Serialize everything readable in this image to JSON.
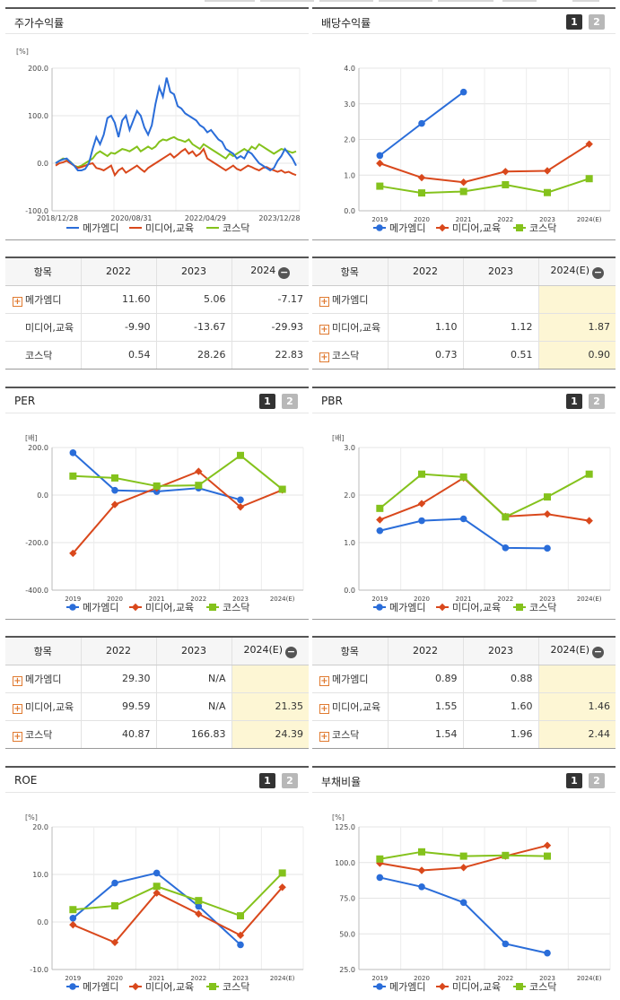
{
  "colors": {
    "mega": "#2a6dd9",
    "media": "#d9481c",
    "kosdaq": "#84c21c"
  },
  "tab1": "1",
  "tab2": "2",
  "panels": {
    "stock": {
      "title": "주가수익률"
    },
    "div": {
      "title": "배당수익률"
    },
    "per": {
      "title": "PER"
    },
    "pbr": {
      "title": "PBR"
    },
    "roe": {
      "title": "ROE"
    },
    "debt": {
      "title": "부채비율"
    }
  },
  "legend": [
    "메가엠디",
    "미디어,교육",
    "코스닥"
  ],
  "stock_table": {
    "header": {
      "item": "항목",
      "c1": "2022",
      "c2": "2023",
      "c3": "2024"
    },
    "rows": [
      {
        "name": "메가엠디",
        "v1": "11.60",
        "v2": "5.06",
        "v3": "-7.17"
      },
      {
        "name": "미디어,교육",
        "v1": "-9.90",
        "v2": "-13.67",
        "v3": "-29.93"
      },
      {
        "name": "코스닥",
        "v1": "0.54",
        "v2": "28.26",
        "v3": "22.83"
      }
    ]
  },
  "div_table": {
    "header": {
      "item": "항목",
      "c1": "2022",
      "c2": "2023",
      "c3": "2024(E)"
    },
    "rows": [
      {
        "name": "메가엠디",
        "v1": "",
        "v2": "",
        "v3": ""
      },
      {
        "name": "미디어,교육",
        "v1": "1.10",
        "v2": "1.12",
        "v3": "1.87"
      },
      {
        "name": "코스닥",
        "v1": "0.73",
        "v2": "0.51",
        "v3": "0.90"
      }
    ]
  },
  "per_table": {
    "header": {
      "item": "항목",
      "c1": "2022",
      "c2": "2023",
      "c3": "2024(E)"
    },
    "rows": [
      {
        "name": "메가엠디",
        "v1": "29.30",
        "v2": "N/A",
        "v3": ""
      },
      {
        "name": "미디어,교육",
        "v1": "99.59",
        "v2": "N/A",
        "v3": "21.35"
      },
      {
        "name": "코스닥",
        "v1": "40.87",
        "v2": "166.83",
        "v3": "24.39"
      }
    ]
  },
  "pbr_table": {
    "header": {
      "item": "항목",
      "c1": "2022",
      "c2": "2023",
      "c3": "2024(E)"
    },
    "rows": [
      {
        "name": "메가엠디",
        "v1": "0.89",
        "v2": "0.88",
        "v3": ""
      },
      {
        "name": "미디어,교육",
        "v1": "1.55",
        "v2": "1.60",
        "v3": "1.46"
      },
      {
        "name": "코스닥",
        "v1": "1.54",
        "v2": "1.96",
        "v3": "2.44"
      }
    ]
  },
  "chart_data": [
    {
      "id": "stock",
      "type": "line",
      "unit": "[%]",
      "ylim": [
        -100,
        200
      ],
      "yticks": [
        "200.0",
        "100.0",
        "0.0",
        "-100.0"
      ],
      "ytick_values": [
        200,
        100,
        0,
        -100
      ],
      "xticks": [
        "2018/12/28",
        "2020/08/31",
        "2022/04/29",
        "2023/12/28"
      ],
      "xtick_index": [
        0,
        20,
        40,
        60
      ],
      "n": 66,
      "series": [
        {
          "name": "메가엠디",
          "values": [
            0,
            5,
            8,
            10,
            2,
            -5,
            -15,
            -15,
            -12,
            0,
            30,
            55,
            40,
            60,
            95,
            100,
            85,
            55,
            90,
            100,
            70,
            90,
            110,
            100,
            75,
            60,
            80,
            125,
            160,
            140,
            180,
            150,
            145,
            120,
            115,
            105,
            100,
            95,
            90,
            80,
            75,
            65,
            70,
            60,
            50,
            45,
            30,
            25,
            20,
            10,
            15,
            10,
            25,
            20,
            10,
            0,
            -5,
            -10,
            -15,
            -10,
            5,
            15,
            30,
            20,
            10,
            -5
          ]
        },
        {
          "name": "미디어,교육",
          "values": [
            -5,
            0,
            2,
            5,
            0,
            -5,
            -10,
            -8,
            -5,
            -2,
            0,
            -10,
            -12,
            -15,
            -10,
            -5,
            -25,
            -15,
            -10,
            -20,
            -15,
            -10,
            -5,
            -12,
            -18,
            -10,
            -5,
            0,
            5,
            10,
            15,
            20,
            12,
            18,
            25,
            30,
            20,
            25,
            15,
            20,
            30,
            10,
            5,
            0,
            -5,
            -10,
            -15,
            -10,
            -5,
            -12,
            -15,
            -10,
            -5,
            -8,
            -12,
            -15,
            -10,
            -8,
            -12,
            -15,
            -18,
            -15,
            -20,
            -18,
            -22,
            -25
          ]
        },
        {
          "name": "코스닥",
          "values": [
            0,
            5,
            10,
            8,
            3,
            -5,
            -8,
            -5,
            0,
            5,
            10,
            20,
            25,
            20,
            15,
            22,
            20,
            25,
            30,
            28,
            25,
            30,
            35,
            25,
            30,
            35,
            30,
            35,
            45,
            50,
            48,
            52,
            55,
            50,
            48,
            45,
            50,
            40,
            35,
            30,
            40,
            35,
            30,
            25,
            20,
            15,
            10,
            20,
            15,
            20,
            25,
            30,
            25,
            35,
            30,
            40,
            35,
            30,
            25,
            20,
            25,
            30,
            28,
            25,
            22,
            25
          ]
        }
      ]
    },
    {
      "id": "div",
      "type": "line",
      "unit": "",
      "ylim": [
        0,
        4
      ],
      "yticks": [
        "4.0",
        "3.0",
        "2.0",
        "1.0",
        "0.0"
      ],
      "ytick_values": [
        4,
        3,
        2,
        1,
        0
      ],
      "categories": [
        "2019",
        "2020",
        "2021",
        "2022",
        "2023",
        "2024(E)"
      ],
      "series": [
        {
          "name": "메가엠디",
          "values": [
            1.55,
            2.45,
            3.33,
            null,
            null,
            null
          ]
        },
        {
          "name": "미디어,교육",
          "values": [
            1.33,
            0.93,
            0.8,
            1.1,
            1.12,
            1.87
          ]
        },
        {
          "name": "코스닥",
          "values": [
            0.69,
            0.5,
            0.54,
            0.73,
            0.51,
            0.9
          ]
        }
      ]
    },
    {
      "id": "per",
      "type": "line",
      "unit": "[배]",
      "ylim": [
        -400,
        200
      ],
      "yticks": [
        "200.0",
        "0.0",
        "-200.0",
        "-400.0"
      ],
      "ytick_values": [
        200,
        0,
        -200,
        -400
      ],
      "categories": [
        "2019",
        "2020",
        "2021",
        "2022",
        "2023",
        "2024(E)"
      ],
      "series": [
        {
          "name": "메가엠디",
          "values": [
            178,
            20,
            15,
            29.3,
            -20,
            null
          ]
        },
        {
          "name": "미디어,교육",
          "values": [
            -245,
            -40,
            30,
            99.59,
            -50,
            21.35
          ]
        },
        {
          "name": "코스닥",
          "values": [
            80,
            72,
            38,
            40.87,
            166.83,
            24.39
          ]
        }
      ]
    },
    {
      "id": "pbr",
      "type": "line",
      "unit": "[배]",
      "ylim": [
        0,
        3
      ],
      "yticks": [
        "3.0",
        "2.0",
        "1.0",
        "0.0"
      ],
      "ytick_values": [
        3,
        2,
        1,
        0
      ],
      "categories": [
        "2019",
        "2020",
        "2021",
        "2022",
        "2023",
        "2024(E)"
      ],
      "series": [
        {
          "name": "메가엠디",
          "values": [
            1.25,
            1.46,
            1.5,
            0.89,
            0.88,
            null
          ]
        },
        {
          "name": "미디어,교육",
          "values": [
            1.48,
            1.82,
            2.36,
            1.55,
            1.6,
            1.46
          ]
        },
        {
          "name": "코스닥",
          "values": [
            1.72,
            2.44,
            2.38,
            1.54,
            1.96,
            2.44
          ]
        }
      ]
    },
    {
      "id": "roe",
      "type": "line",
      "unit": "[%]",
      "ylim": [
        -10,
        20
      ],
      "yticks": [
        "20.0",
        "10.0",
        "0.0",
        "-10.0"
      ],
      "ytick_values": [
        20,
        10,
        0,
        -10
      ],
      "categories": [
        "2019",
        "2020",
        "2021",
        "2022",
        "2023",
        "2024(E)"
      ],
      "series": [
        {
          "name": "메가엠디",
          "values": [
            0.8,
            8.2,
            10.3,
            3.3,
            -4.8,
            null
          ]
        },
        {
          "name": "미디어,교육",
          "values": [
            -0.6,
            -4.3,
            6.1,
            1.7,
            -2.8,
            7.3
          ]
        },
        {
          "name": "코스닥",
          "values": [
            2.6,
            3.4,
            7.5,
            4.5,
            1.3,
            10.3
          ]
        }
      ]
    },
    {
      "id": "debt",
      "type": "line",
      "unit": "[%]",
      "ylim": [
        25,
        125
      ],
      "yticks": [
        "125.0",
        "100.0",
        "75.0",
        "50.0",
        "25.0"
      ],
      "ytick_values": [
        125,
        100,
        75,
        50,
        25
      ],
      "categories": [
        "2019",
        "2020",
        "2021",
        "2022",
        "2023",
        "2024(E)"
      ],
      "series": [
        {
          "name": "메가엠디",
          "values": [
            89.5,
            83,
            72,
            43,
            36.5,
            null
          ]
        },
        {
          "name": "미디어,교육",
          "values": [
            99.5,
            94.5,
            96.5,
            104.5,
            112,
            null
          ]
        },
        {
          "name": "코스닥",
          "values": [
            102.5,
            107.5,
            104.5,
            105,
            104.5,
            null
          ]
        }
      ]
    }
  ]
}
